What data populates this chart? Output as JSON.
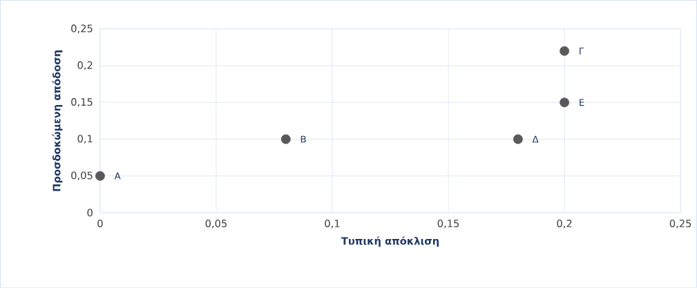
{
  "chart_data": {
    "type": "scatter",
    "xlabel": "Τυπική απόκλιση",
    "ylabel": "Προσδοκώμενη απόδοση",
    "x": [
      0,
      0.08,
      0.2,
      0.18,
      0.2
    ],
    "values": [
      0.05,
      0.1,
      0.22,
      0.1,
      0.15
    ],
    "color": "#595959",
    "marker": "circle",
    "grid": true,
    "xlim": [
      0,
      0.25
    ],
    "ylim": [
      0,
      0.25
    ],
    "xticks": [
      0,
      {
        "value": 0.05,
        "label": "0,05"
      },
      {
        "value": 0.1,
        "label": "0,1"
      },
      {
        "value": 0.15,
        "label": "0,15"
      },
      {
        "value": 0.2,
        "label": "0,2"
      },
      {
        "value": 0.25,
        "label": "0,25"
      }
    ],
    "yticks": [
      0,
      {
        "value": 0.05,
        "label": "0,05"
      },
      {
        "value": 0.1,
        "label": "0,1"
      },
      {
        "value": 0.15,
        "label": "0,15"
      },
      {
        "value": 0.2,
        "label": "0,2"
      },
      {
        "value": 0.25,
        "label": "0,25"
      }
    ],
    "annotations": [
      {
        "text": "Α",
        "x": 0,
        "y": 0.05
      },
      {
        "text": "Β",
        "x": 0.08,
        "y": 0.1
      },
      {
        "text": "Γ",
        "x": 0.2,
        "y": 0.22
      },
      {
        "text": "Δ",
        "x": 0.18,
        "y": 0.1
      },
      {
        "text": "Ε",
        "x": 0.2,
        "y": 0.15
      }
    ]
  }
}
